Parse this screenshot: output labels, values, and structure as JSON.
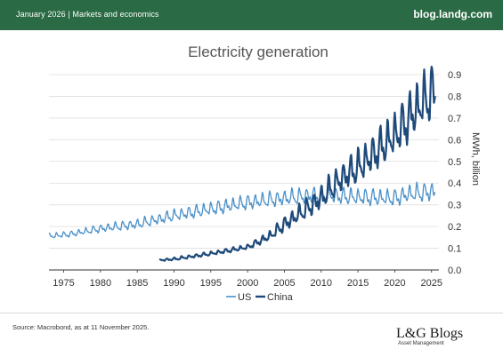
{
  "header": {
    "left_text": "January 2026 | Markets and economics",
    "site": "blog.landg.com"
  },
  "footer": {
    "source": "Source: Macrobond, as at 11 November 2025.",
    "logo_main": "L&G Blogs",
    "logo_sub": "Asset Management"
  },
  "colors": {
    "header_bg": "#2a6a44",
    "us": "#4a90c8",
    "china": "#1e4a7a",
    "grid": "#dddddd"
  },
  "chart_data": {
    "type": "line",
    "title": "Electricity generation",
    "xlabel": "",
    "ylabel": "MWh, billion",
    "xlim": [
      1973,
      2026
    ],
    "ylim": [
      0,
      0.9
    ],
    "x_ticks": [
      1975,
      1980,
      1985,
      1990,
      1995,
      2000,
      2005,
      2010,
      2015,
      2020,
      2025
    ],
    "y_ticks": [
      "0.0",
      "0.1",
      "0.2",
      "0.3",
      "0.4",
      "0.5",
      "0.6",
      "0.7",
      "0.8",
      "0.9"
    ],
    "y_axis_side": "right",
    "grid": "horizontal",
    "legend_position": "bottom-center",
    "series": [
      {
        "name": "US",
        "color": "#4a90c8",
        "frequency": "monthly",
        "x": [
          1973,
          1976,
          1980,
          1985,
          1990,
          1995,
          2000,
          2005,
          2008,
          2010,
          2015,
          2020,
          2022,
          2025.5
        ],
        "y": [
          0.155,
          0.165,
          0.19,
          0.21,
          0.25,
          0.28,
          0.31,
          0.33,
          0.34,
          0.345,
          0.335,
          0.33,
          0.35,
          0.36
        ],
        "seasonal_amplitude": [
          0.006,
          0.006,
          0.008,
          0.01,
          0.012,
          0.014,
          0.015,
          0.016,
          0.017,
          0.017,
          0.017,
          0.017,
          0.018,
          0.02
        ]
      },
      {
        "name": "China",
        "color": "#1e4a7a",
        "frequency": "monthly",
        "x": [
          1988,
          1990,
          1995,
          2000,
          2003,
          2005,
          2008,
          2010,
          2013,
          2015,
          2018,
          2020,
          2022,
          2024,
          2025.5
        ],
        "y": [
          0.045,
          0.05,
          0.075,
          0.105,
          0.155,
          0.21,
          0.28,
          0.33,
          0.43,
          0.47,
          0.56,
          0.62,
          0.7,
          0.78,
          0.82
        ],
        "seasonal_amplitude": [
          0.002,
          0.003,
          0.004,
          0.005,
          0.01,
          0.015,
          0.02,
          0.025,
          0.03,
          0.035,
          0.04,
          0.045,
          0.05,
          0.055,
          0.06
        ]
      }
    ]
  }
}
